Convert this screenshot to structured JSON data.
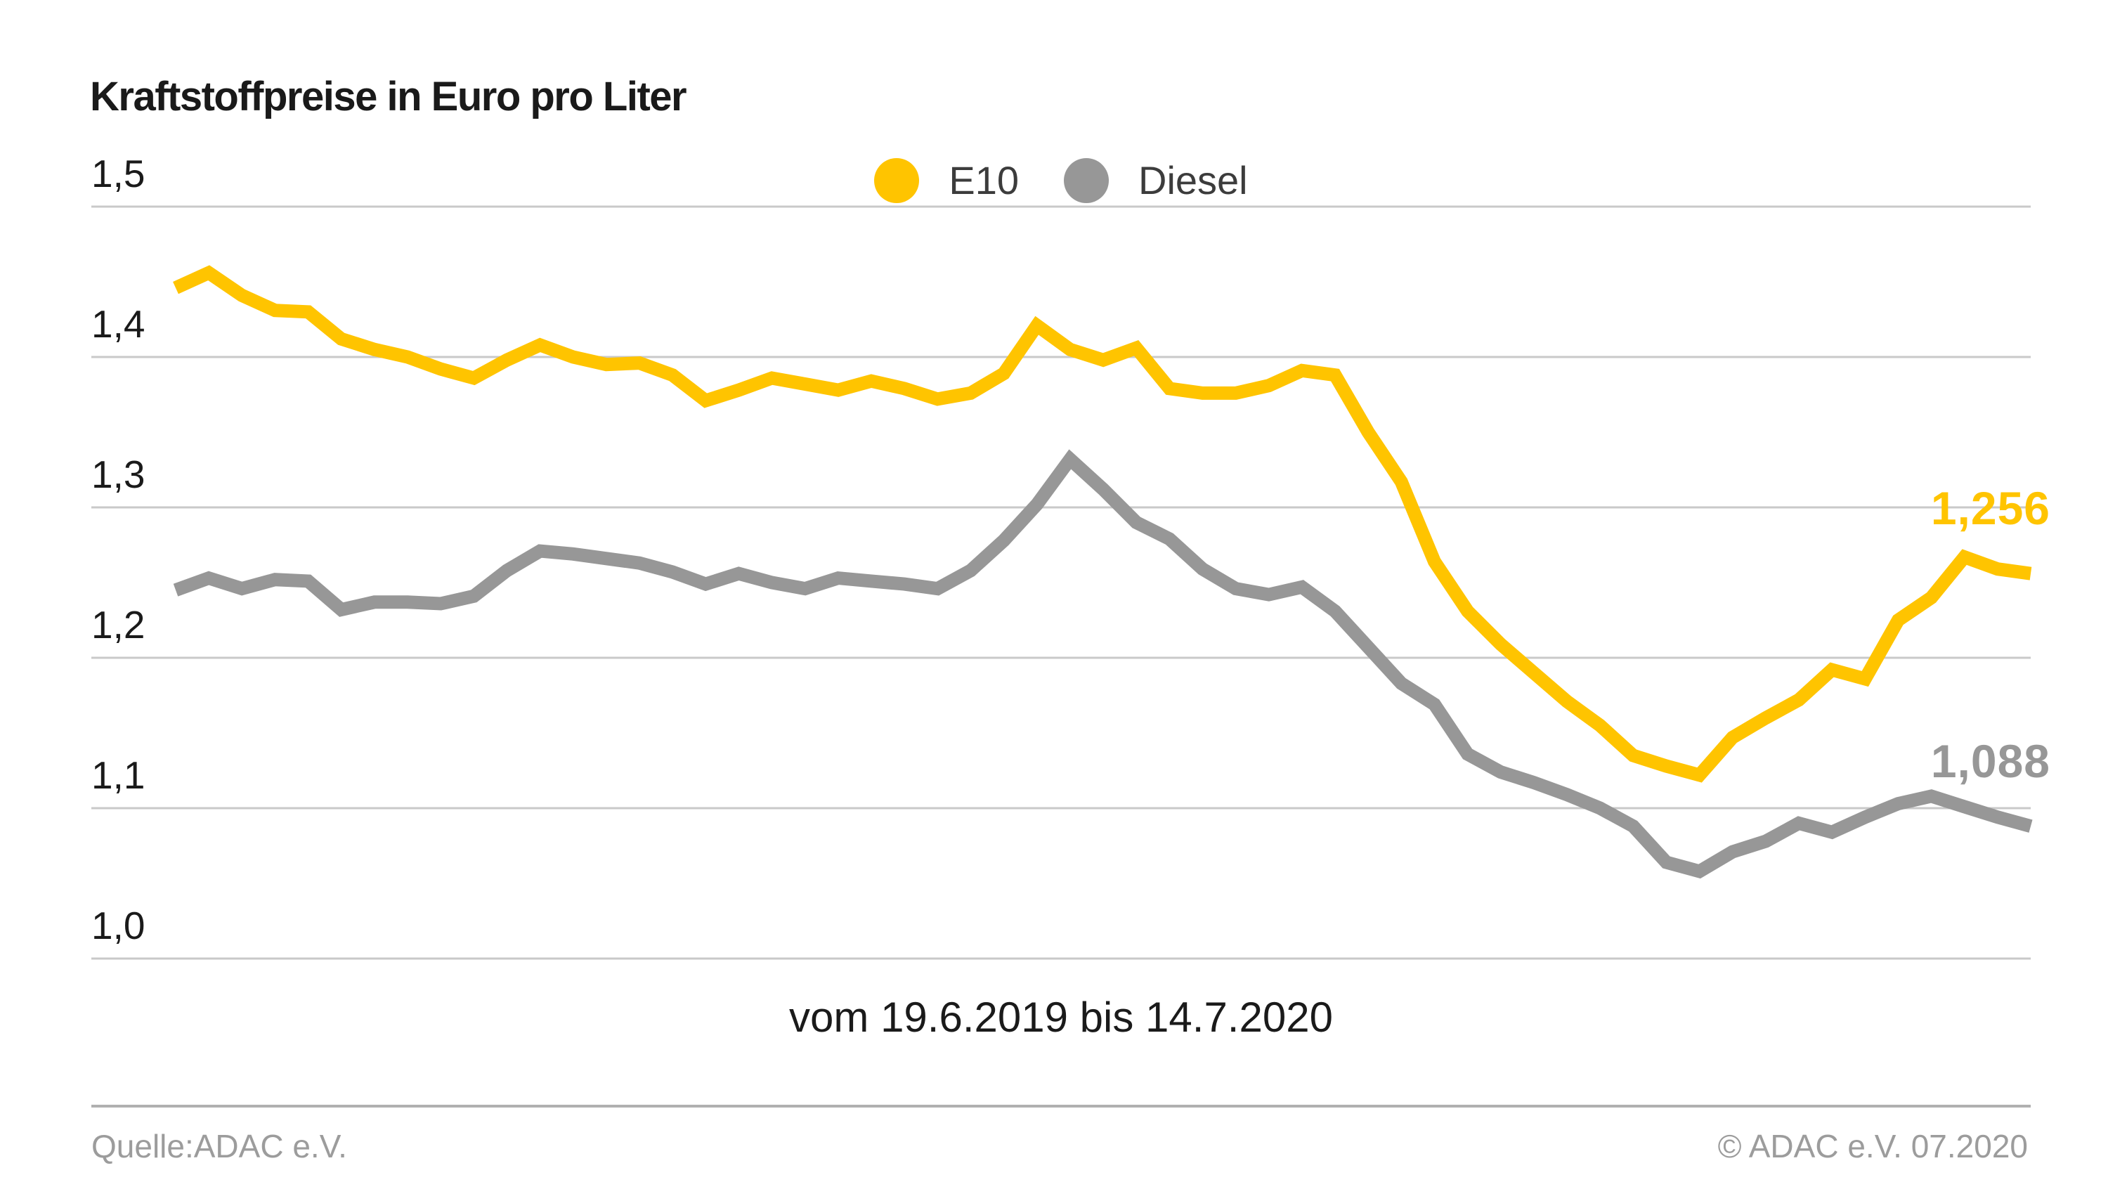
{
  "footer": {
    "source": "Quelle:ADAC e.V.",
    "copyright": "© ADAC e.V. 07.2020"
  },
  "colors": {
    "e10": "#FFC400",
    "diesel": "#979797",
    "grid": "#C9C9C9",
    "footer_rule": "#B0B0B0",
    "footer_text": "#9C9C9C",
    "text": "#1A1A1A"
  },
  "chart_data": {
    "type": "line",
    "title": "Kraftstoffpreise in Euro pro Liter",
    "x_label": "vom 19.6.2019 bis 14.7.2020",
    "x_start": "19.6.2019",
    "x_end": "14.7.2020",
    "ylabel": "Euro pro Liter",
    "ylim": [
      1.0,
      1.5
    ],
    "grid": true,
    "yticks": [
      {
        "label": "1,5",
        "value": 1.5
      },
      {
        "label": "1,4",
        "value": 1.4
      },
      {
        "label": "1,3",
        "value": 1.3
      },
      {
        "label": "1,2",
        "value": 1.2
      },
      {
        "label": "1,1",
        "value": 1.1
      },
      {
        "label": "1,0",
        "value": 1.0
      }
    ],
    "legend": {
      "position": "top-center",
      "items": [
        {
          "label": "E10",
          "color": "#FFC400"
        },
        {
          "label": "Diesel",
          "color": "#979797"
        }
      ]
    },
    "series": [
      {
        "name": "E10",
        "color": "#FFC400",
        "end_label": "1,256",
        "end_value": 1.256,
        "values": [
          1.446,
          1.456,
          1.441,
          1.431,
          1.43,
          1.412,
          1.405,
          1.4,
          1.392,
          1.386,
          1.398,
          1.408,
          1.4,
          1.395,
          1.396,
          1.388,
          1.371,
          1.378,
          1.386,
          1.382,
          1.378,
          1.384,
          1.379,
          1.372,
          1.376,
          1.389,
          1.421,
          1.405,
          1.398,
          1.406,
          1.379,
          1.376,
          1.376,
          1.381,
          1.391,
          1.388,
          1.35,
          1.317,
          1.264,
          1.231,
          1.209,
          1.19,
          1.171,
          1.155,
          1.135,
          1.128,
          1.122,
          1.147,
          1.16,
          1.172,
          1.192,
          1.186,
          1.225,
          1.24,
          1.267,
          1.259,
          1.256
        ]
      },
      {
        "name": "Diesel",
        "color": "#979797",
        "end_label": "1,088",
        "end_value": 1.088,
        "values": [
          1.245,
          1.253,
          1.246,
          1.252,
          1.251,
          1.232,
          1.237,
          1.237,
          1.236,
          1.241,
          1.258,
          1.271,
          1.269,
          1.266,
          1.263,
          1.257,
          1.249,
          1.256,
          1.25,
          1.246,
          1.253,
          1.251,
          1.249,
          1.246,
          1.258,
          1.278,
          1.302,
          1.332,
          1.312,
          1.29,
          1.279,
          1.259,
          1.246,
          1.242,
          1.247,
          1.231,
          1.207,
          1.183,
          1.169,
          1.136,
          1.124,
          1.117,
          1.109,
          1.1,
          1.088,
          1.064,
          1.058,
          1.071,
          1.078,
          1.09,
          1.084,
          1.094,
          1.103,
          1.108,
          1.101,
          1.094,
          1.088
        ]
      }
    ]
  }
}
